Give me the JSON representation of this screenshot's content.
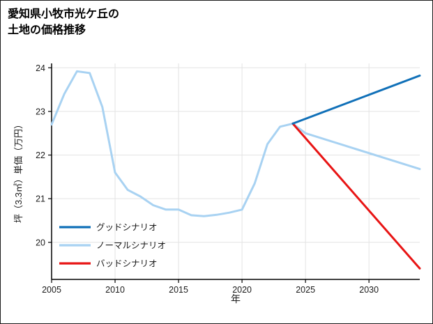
{
  "chart_data": {
    "type": "line",
    "title": "愛知県小牧市光ケ丘の土地の価格推移",
    "title_lines": [
      "愛知県小牧市光ケ丘の",
      "土地の価格推移"
    ],
    "xlabel": "年",
    "ylabel": "坪（3.3㎡）単価（万円）",
    "xlim": [
      2005,
      2034
    ],
    "ylim": [
      19.15,
      24.1
    ],
    "xticks": [
      2005,
      2010,
      2015,
      2020,
      2025,
      2030
    ],
    "yticks": [
      20,
      21,
      22,
      23,
      24
    ],
    "grid": true,
    "grid_color": "#e3e3e3",
    "axis_color": "#000000",
    "legend_position": "lower-left-inside",
    "series": [
      {
        "id": "good",
        "name": "グッドシナリオ",
        "color": "#1070b8",
        "width": 3,
        "z": 3,
        "x": [
          2024,
          2034
        ],
        "y": [
          22.72,
          23.82
        ]
      },
      {
        "id": "normal",
        "name": "ノーマルシナリオ",
        "color": "#a8d2f2",
        "width": 3,
        "z": 1,
        "x": [
          2005,
          2006,
          2007,
          2008,
          2009,
          2010,
          2011,
          2012,
          2013,
          2014,
          2015,
          2016,
          2017,
          2018,
          2019,
          2020,
          2021,
          2022,
          2023,
          2024,
          2025,
          2034
        ],
        "y": [
          22.7,
          23.4,
          23.92,
          23.88,
          23.1,
          21.6,
          21.2,
          21.05,
          20.85,
          20.75,
          20.75,
          20.62,
          20.6,
          20.63,
          20.68,
          20.75,
          21.35,
          22.25,
          22.65,
          22.72,
          22.5,
          21.68
        ]
      },
      {
        "id": "bad",
        "name": "バッドシナリオ",
        "color": "#e81414",
        "width": 3,
        "z": 2,
        "x": [
          2024,
          2034
        ],
        "y": [
          22.72,
          19.4
        ]
      }
    ]
  }
}
